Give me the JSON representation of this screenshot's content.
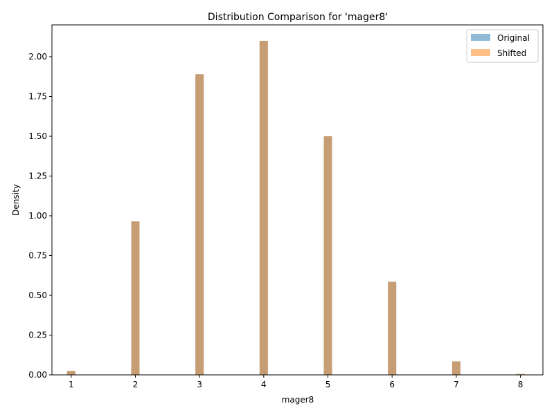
{
  "chart_data": {
    "type": "bar",
    "title": "Distribution Comparison for 'mager8'",
    "xlabel": "mager8",
    "ylabel": "Density",
    "xlim": [
      0.7,
      8.35
    ],
    "ylim": [
      0,
      2.2
    ],
    "x_ticks": [
      "1",
      "2",
      "3",
      "4",
      "5",
      "6",
      "7",
      "8"
    ],
    "y_ticks": [
      "0.00",
      "0.25",
      "0.50",
      "0.75",
      "1.00",
      "1.25",
      "1.50",
      "1.75",
      "2.00"
    ],
    "legend_position": "top-right",
    "grid": false,
    "x": [
      1,
      2,
      3,
      4,
      5,
      6,
      7,
      8
    ],
    "series": [
      {
        "name": "Original",
        "color": "#1f77b4",
        "alpha": 0.5,
        "values": [
          0.025,
          0.965,
          1.89,
          2.1,
          1.5,
          0.585,
          0.085,
          0.005
        ]
      },
      {
        "name": "Shifted",
        "color": "#ff7f0e",
        "alpha": 0.5,
        "values": [
          0.025,
          0.965,
          1.89,
          2.1,
          1.5,
          0.585,
          0.085,
          0.005
        ]
      }
    ]
  }
}
